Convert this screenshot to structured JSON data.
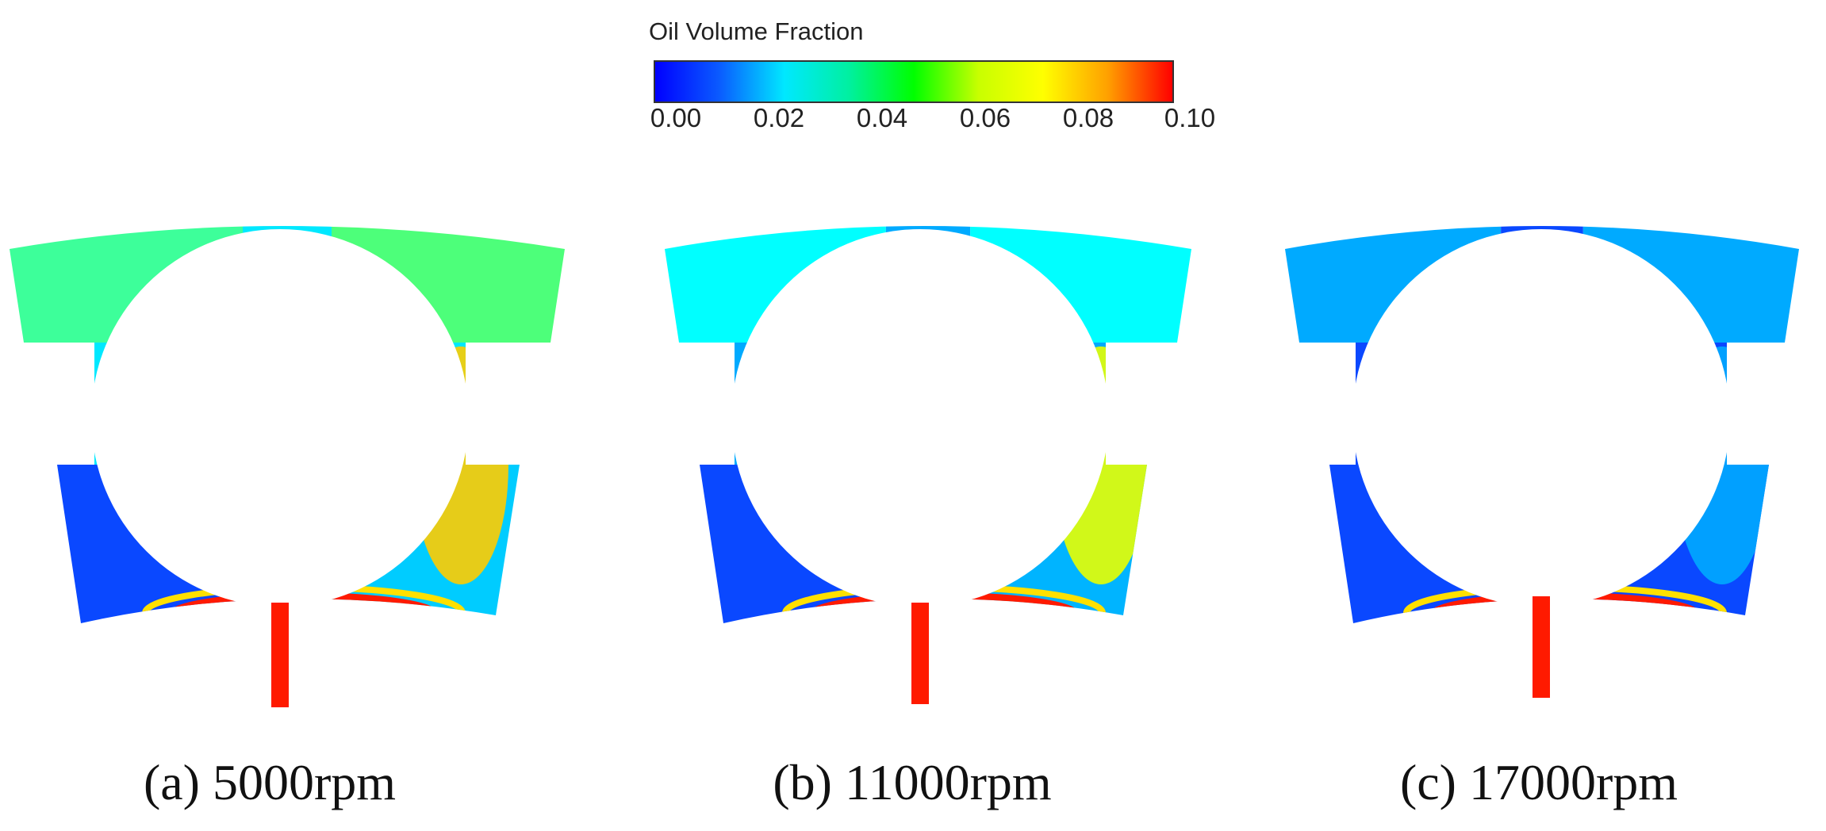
{
  "legend": {
    "title": "Oil Volume Fraction",
    "ticks": [
      "0.00",
      "0.02",
      "0.04",
      "0.06",
      "0.08",
      "0.10"
    ],
    "range": [
      0.0,
      0.1
    ],
    "colormap": [
      "#0000ff",
      "#0a5cff",
      "#00e8ff",
      "#00f0a0",
      "#00ff00",
      "#c8ff00",
      "#ffff00",
      "#ffa000",
      "#ff0000"
    ]
  },
  "panels": [
    {
      "caption": "(a) 5000rpm",
      "field": {
        "upper_left": "#3dff9a",
        "upper_right": "#4dff7a",
        "upper_mid": "#00e8ff",
        "lower_left": "#0a48ff",
        "lower_right": "#00ccff",
        "bottom_band": "#ff1a00",
        "right_band": "#ffcc00",
        "stem": "#ff1a00"
      }
    },
    {
      "caption": "(b) 11000rpm",
      "field": {
        "upper_left": "#00ffff",
        "upper_right": "#00ffff",
        "upper_mid": "#00aaff",
        "lower_left": "#0a48ff",
        "lower_right": "#00b4ff",
        "bottom_band": "#ff1a00",
        "right_band": "#e8ff00",
        "stem": "#ff1a00"
      }
    },
    {
      "caption": "(c) 17000rpm",
      "field": {
        "upper_left": "#00aaff",
        "upper_right": "#00aaff",
        "upper_mid": "#0a48ff",
        "lower_left": "#0a48ff",
        "lower_right": "#0a48ff",
        "bottom_band": "#ff1a00",
        "right_band": "#00aaff",
        "stem": "#ff1a00"
      }
    }
  ]
}
